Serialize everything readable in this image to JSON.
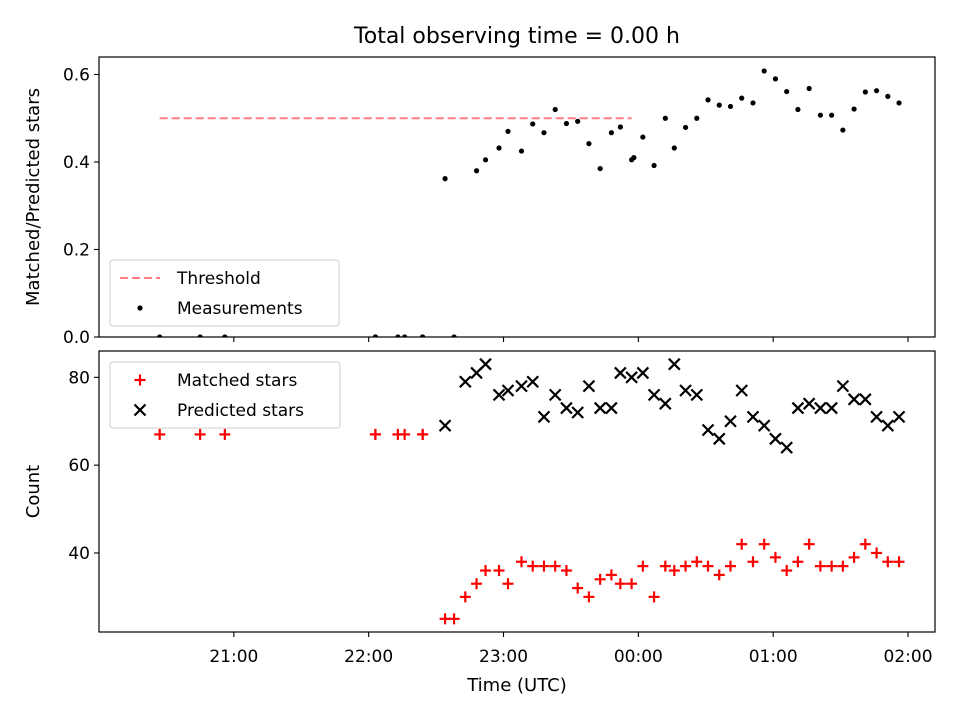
{
  "figure_title": "Total observing time = 0.00 h",
  "shared_x": {
    "label": "Time (UTC)",
    "ticks": [
      "21:00",
      "22:00",
      "23:00",
      "00:00",
      "01:00",
      "02:00"
    ],
    "tick_hours": [
      21,
      22,
      23,
      24,
      25,
      26
    ],
    "range_hours": [
      20.0,
      26.2
    ]
  },
  "chart_data": [
    {
      "type": "scatter",
      "title": "Total observing time = 0.00 h",
      "xlabel": "",
      "ylabel": "Matched/Predicted stars",
      "ylim": [
        0.0,
        0.64
      ],
      "yticks": [
        "0.0",
        "0.2",
        "0.4",
        "0.6"
      ],
      "ytick_values": [
        0.0,
        0.2,
        0.4,
        0.6
      ],
      "grid": false,
      "legend_position": "lower-left",
      "threshold": {
        "name": "Threshold",
        "value": 0.5,
        "x_range": [
          "20:27",
          "23:57"
        ],
        "color": "#ff7f7f"
      },
      "series": [
        {
          "name": "Measurements",
          "marker": "dot",
          "color": "#000000",
          "x": [
            "20:27",
            "20:45",
            "20:56",
            "22:03",
            "22:03",
            "22:13",
            "22:16",
            "22:24",
            "22:24",
            "22:34",
            "22:38",
            "22:48",
            "22:52",
            "22:58",
            "23:02",
            "23:08",
            "23:13",
            "23:18",
            "23:23",
            "23:28",
            "23:33",
            "23:38",
            "23:43",
            "23:48",
            "23:52",
            "23:57",
            "23:58",
            "00:02",
            "00:07",
            "00:12",
            "00:16",
            "00:21",
            "00:26",
            "00:31",
            "00:36",
            "00:41",
            "00:46",
            "00:51",
            "00:56",
            "01:01",
            "01:06",
            "01:11",
            "01:16",
            "01:21",
            "01:26",
            "01:31",
            "01:36",
            "01:41",
            "01:46",
            "01:51",
            "01:56"
          ],
          "y": [
            0.0,
            0.0,
            0.0,
            0.0,
            0.0,
            0.0,
            0.0,
            0.0,
            0.0,
            0.362,
            0.0,
            0.38,
            0.405,
            0.432,
            0.47,
            0.425,
            0.487,
            0.467,
            0.52,
            0.488,
            0.493,
            0.442,
            0.385,
            0.467,
            0.48,
            0.405,
            0.41,
            0.457,
            0.392,
            0.5,
            0.432,
            0.479,
            0.5,
            0.542,
            0.53,
            0.527,
            0.546,
            0.535,
            0.608,
            0.59,
            0.561,
            0.52,
            0.568,
            0.507,
            0.507,
            0.473,
            0.521,
            0.56,
            0.563,
            0.55,
            0.535
          ]
        }
      ]
    },
    {
      "type": "scatter",
      "title": "",
      "xlabel": "Time (UTC)",
      "ylabel": "Count",
      "ylim": [
        22,
        86
      ],
      "yticks": [
        "40",
        "60",
        "80"
      ],
      "ytick_values": [
        40,
        60,
        80
      ],
      "grid": false,
      "legend_position": "upper-left",
      "series": [
        {
          "name": "Matched stars",
          "marker": "plus",
          "color": "#ff0000",
          "x": [
            "20:27",
            "20:45",
            "20:56",
            "22:03",
            "22:03",
            "22:13",
            "22:16",
            "22:24",
            "22:24",
            "22:34",
            "22:38",
            "22:43",
            "22:48",
            "22:52",
            "22:58",
            "23:02",
            "23:08",
            "23:13",
            "23:18",
            "23:23",
            "23:28",
            "23:33",
            "23:38",
            "23:43",
            "23:48",
            "23:52",
            "23:57",
            "00:02",
            "00:07",
            "00:12",
            "00:16",
            "00:21",
            "00:26",
            "00:31",
            "00:36",
            "00:41",
            "00:46",
            "00:51",
            "00:56",
            "01:01",
            "01:06",
            "01:11",
            "01:16",
            "01:21",
            "01:26",
            "01:31",
            "01:36",
            "01:41",
            "01:46",
            "01:51",
            "01:56"
          ],
          "y": [
            67,
            67,
            67,
            67,
            67,
            67,
            67,
            67,
            67,
            25,
            25,
            30,
            33,
            36,
            36,
            33,
            38,
            37,
            37,
            37,
            36,
            32,
            30,
            34,
            35,
            33,
            33,
            37,
            30,
            37,
            36,
            37,
            38,
            37,
            35,
            37,
            42,
            38,
            42,
            39,
            36,
            38,
            42,
            37,
            37,
            37,
            39,
            42,
            40,
            38,
            38
          ]
        },
        {
          "name": "Predicted stars",
          "marker": "x",
          "color": "#000000",
          "x": [
            "22:34",
            "22:43",
            "22:48",
            "22:52",
            "22:58",
            "23:02",
            "23:08",
            "23:13",
            "23:18",
            "23:23",
            "23:28",
            "23:33",
            "23:38",
            "23:43",
            "23:48",
            "23:52",
            "23:57",
            "00:02",
            "00:07",
            "00:12",
            "00:16",
            "00:21",
            "00:26",
            "00:31",
            "00:36",
            "00:41",
            "00:46",
            "00:51",
            "00:56",
            "01:01",
            "01:06",
            "01:11",
            "01:16",
            "01:21",
            "01:26",
            "01:31",
            "01:36",
            "01:41",
            "01:46",
            "01:51",
            "01:56"
          ],
          "y": [
            69,
            79,
            81,
            83,
            76,
            77,
            78,
            79,
            71,
            76,
            73,
            72,
            78,
            73,
            73,
            81,
            80,
            81,
            76,
            74,
            83,
            77,
            76,
            68,
            66,
            70,
            77,
            71,
            69,
            66,
            64,
            73,
            74,
            73,
            73,
            78,
            75,
            75,
            71,
            69,
            71
          ]
        }
      ]
    }
  ]
}
